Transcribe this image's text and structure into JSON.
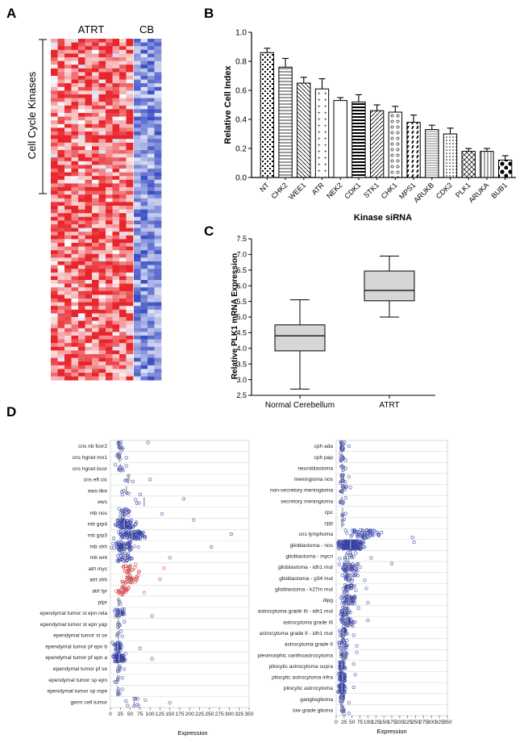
{
  "panels": {
    "A": "A",
    "B": "B",
    "C": "C",
    "D": "D"
  },
  "chart_data": [
    {
      "panel": "A",
      "type": "heatmap",
      "column_groups": [
        "ATRT",
        "CB"
      ],
      "ylabel": "Cell Cycle Kinases",
      "colors": {
        "high": "#e8252b",
        "low": "#3b4fc4",
        "mid": "#ffffff"
      }
    },
    {
      "panel": "B",
      "type": "bar",
      "xlabel": "Kinase siRNA",
      "ylabel": "Relative Cell Index",
      "ylim": [
        0,
        1.0
      ],
      "yticks": [
        "0.0",
        "0.2",
        "0.4",
        "0.6",
        "0.8",
        "1.0"
      ],
      "categories": [
        "NT",
        "CHK2",
        "WEE1",
        "ATR",
        "NEK2",
        "CDK1",
        "STK1",
        "CHK1",
        "MPS1",
        "ARUKB",
        "CDK2",
        "PLK1",
        "ARUKA",
        "BUB1"
      ],
      "values": [
        0.86,
        0.76,
        0.65,
        0.61,
        0.53,
        0.52,
        0.46,
        0.45,
        0.38,
        0.33,
        0.3,
        0.18,
        0.18,
        0.12
      ],
      "errors": [
        0.03,
        0.06,
        0.04,
        0.07,
        0.02,
        0.05,
        0.04,
        0.04,
        0.05,
        0.03,
        0.04,
        0.02,
        0.02,
        0.03
      ]
    },
    {
      "panel": "C",
      "type": "box",
      "ylabel": "Relative PLK1 mRNA Expression",
      "ylim": [
        2.5,
        7.5
      ],
      "yticks": [
        "2.5",
        "3.0",
        "3.5",
        "4.0",
        "4.5",
        "5.0",
        "5.5",
        "6.0",
        "6.5",
        "7.0",
        "7.5"
      ],
      "categories": [
        "Normal Cerebellum",
        "ATRT"
      ],
      "boxes": [
        {
          "min": 2.7,
          "q1": 3.92,
          "median": 4.4,
          "q3": 4.75,
          "max": 5.55
        },
        {
          "min": 5.0,
          "q1": 5.52,
          "median": 5.85,
          "q3": 6.47,
          "max": 6.95
        }
      ]
    },
    {
      "panel": "D-left",
      "type": "scatter",
      "xlabel": "Expression",
      "xlim": [
        0,
        350
      ],
      "xticks": [
        "0",
        "25",
        "50",
        "75",
        "100",
        "125",
        "150",
        "175",
        "200",
        "225",
        "250",
        "275",
        "300",
        "325",
        "350"
      ],
      "categories": [
        "cns nb foxr2",
        "cns hgnet mn1",
        "cns hgnet bcor",
        "cns eft cic",
        "ews-like",
        "ews",
        "mb nos",
        "mb grp4",
        "mb grp3",
        "mb shh",
        "mb wnt",
        "atrt myc",
        "atrt shh",
        "atrt tyr",
        "ptpr",
        "ependymal tumor st epn rela",
        "ependymal tumor st epn yap",
        "ependymal tumor st se",
        "ependymal tumor pf epn b",
        "ependymal tumor pf epn a",
        "ependymal tumor pf se",
        "ependymal tumor sp epn",
        "ependymal tumor sp mpe",
        "germ cell tumor"
      ],
      "highlight": [
        "atrt myc",
        "atrt shh",
        "atrt tyr"
      ],
      "groups": [
        {
          "median": 25,
          "spread": 12,
          "n": 14,
          "tail": 95
        },
        {
          "median": 22,
          "spread": 10,
          "n": 10,
          "tail": 40
        },
        {
          "median": 25,
          "spread": 10,
          "n": 10,
          "tail": 40
        },
        {
          "median": 45,
          "spread": 20,
          "n": 6,
          "tail": 100
        },
        {
          "median": 40,
          "spread": 18,
          "n": 6,
          "tail": 75
        },
        {
          "median": 85,
          "spread": 40,
          "n": 4,
          "tail": 185
        },
        {
          "median": 30,
          "spread": 20,
          "n": 22,
          "tail": 130
        },
        {
          "median": 35,
          "spread": 25,
          "n": 90,
          "tail": 210
        },
        {
          "median": 55,
          "spread": 40,
          "n": 90,
          "tail": 305
        },
        {
          "median": 35,
          "spread": 28,
          "n": 70,
          "tail": 255
        },
        {
          "median": 35,
          "spread": 22,
          "n": 30,
          "tail": 150
        },
        {
          "median": 50,
          "spread": 25,
          "n": 24,
          "tail": 135
        },
        {
          "median": 48,
          "spread": 25,
          "n": 30,
          "tail": 125
        },
        {
          "median": 30,
          "spread": 18,
          "n": 26,
          "tail": 85
        },
        {
          "median": 20,
          "spread": 4,
          "n": 3,
          "tail": 25
        },
        {
          "median": 25,
          "spread": 15,
          "n": 30,
          "tail": 105
        },
        {
          "median": 20,
          "spread": 8,
          "n": 6,
          "tail": 35
        },
        {
          "median": 20,
          "spread": 8,
          "n": 5,
          "tail": 30
        },
        {
          "median": 18,
          "spread": 12,
          "n": 40,
          "tail": 75
        },
        {
          "median": 22,
          "spread": 15,
          "n": 80,
          "tail": 105
        },
        {
          "median": 20,
          "spread": 8,
          "n": 8,
          "tail": 35
        },
        {
          "median": 18,
          "spread": 6,
          "n": 6,
          "tail": 30
        },
        {
          "median": 18,
          "spread": 6,
          "n": 6,
          "tail": 30
        },
        {
          "median": 60,
          "spread": 50,
          "n": 10,
          "tail": 150
        }
      ]
    },
    {
      "panel": "D-right",
      "type": "scatter",
      "xlabel": "Expression",
      "xlim": [
        0,
        350
      ],
      "xticks": [
        "0",
        "25",
        "50",
        "75",
        "100",
        "125",
        "150",
        "175",
        "200",
        "225",
        "250",
        "275",
        "300",
        "325",
        "350"
      ],
      "categories": [
        "cph ada",
        "cph pap",
        "neuroblastoma",
        "meningioma nos",
        "non-secretory meningioma",
        "secretory meningioma",
        "cpc",
        "cpp",
        "cns lymphoma",
        "glioblastoma - nos",
        "glioblastoma - mycn",
        "glioblastoma - idh1 mut",
        "glioblastoma - g34 mut",
        "glioblastoma - k27m mut",
        "dipg",
        "astrocytoma grade III - idh1 mut",
        "astrocytoma grade III",
        "astrocytoma grade II - idh1 mut",
        "astrocytoma grade II",
        "pleomorphic xanthoastrocytoma",
        "pilocytic astrocytoma supra",
        "pilocytic astrocytoma infra",
        "pilocytic astrocytoma",
        "ganglioglioma",
        "low grade glioma"
      ],
      "groups": [
        {
          "median": 20,
          "spread": 8,
          "n": 20,
          "tail": 40
        },
        {
          "median": 18,
          "spread": 6,
          "n": 12,
          "tail": 30
        },
        {
          "median": 20,
          "spread": 6,
          "n": 6,
          "tail": 30
        },
        {
          "median": 20,
          "spread": 8,
          "n": 14,
          "tail": 40
        },
        {
          "median": 22,
          "spread": 10,
          "n": 14,
          "tail": 45
        },
        {
          "median": 18,
          "spread": 6,
          "n": 8,
          "tail": 30
        },
        {
          "median": 20,
          "spread": 5,
          "n": 4,
          "tail": 30
        },
        {
          "median": 18,
          "spread": 5,
          "n": 3,
          "tail": 25
        },
        {
          "median": 90,
          "spread": 60,
          "n": 60,
          "tail": 240
        },
        {
          "median": 45,
          "spread": 40,
          "n": 220,
          "tail": 245
        },
        {
          "median": 40,
          "spread": 25,
          "n": 14,
          "tail": 110
        },
        {
          "median": 40,
          "spread": 30,
          "n": 50,
          "tail": 175
        },
        {
          "median": 40,
          "spread": 25,
          "n": 25,
          "tail": 90
        },
        {
          "median": 38,
          "spread": 25,
          "n": 30,
          "tail": 95
        },
        {
          "median": 40,
          "spread": 28,
          "n": 45,
          "tail": 100
        },
        {
          "median": 28,
          "spread": 18,
          "n": 30,
          "tail": 70
        },
        {
          "median": 35,
          "spread": 25,
          "n": 40,
          "tail": 100
        },
        {
          "median": 22,
          "spread": 12,
          "n": 25,
          "tail": 55
        },
        {
          "median": 25,
          "spread": 15,
          "n": 25,
          "tail": 65
        },
        {
          "median": 25,
          "spread": 15,
          "n": 20,
          "tail": 65
        },
        {
          "median": 18,
          "spread": 10,
          "n": 35,
          "tail": 55
        },
        {
          "median": 20,
          "spread": 12,
          "n": 60,
          "tail": 60
        },
        {
          "median": 18,
          "spread": 10,
          "n": 60,
          "tail": 55
        },
        {
          "median": 18,
          "spread": 8,
          "n": 20,
          "tail": 40
        },
        {
          "median": 20,
          "spread": 8,
          "n": 10,
          "tail": 40
        }
      ]
    }
  ]
}
